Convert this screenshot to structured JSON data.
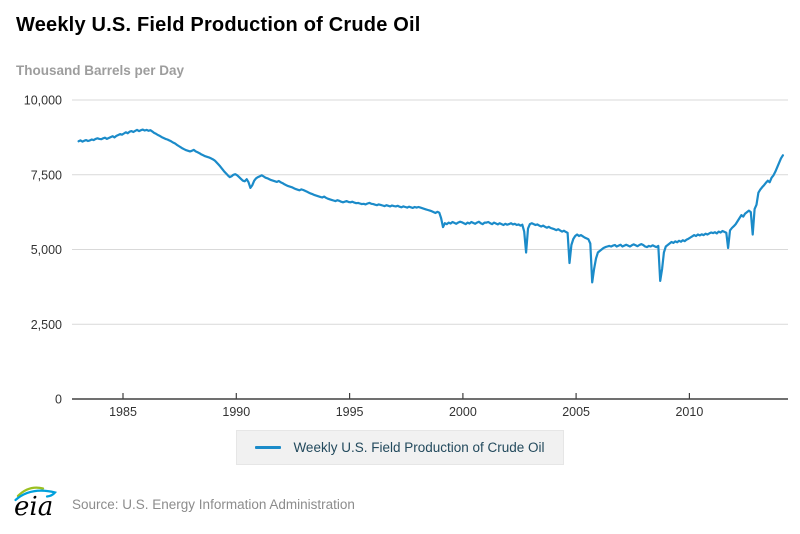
{
  "header": {
    "title": "Weekly U.S. Field Production of Crude Oil",
    "unit_label": "Thousand Barrels per Day"
  },
  "chart_data": {
    "type": "line",
    "title": "Weekly U.S. Field Production of Crude Oil",
    "xlabel": "",
    "ylabel": "Thousand Barrels per Day",
    "xlim": [
      1982.75,
      2014.35
    ],
    "ylim": [
      0,
      10000
    ],
    "grid": "horizontal",
    "x_ticks": [
      {
        "v": 1985,
        "label": "1985"
      },
      {
        "v": 1990,
        "label": "1990"
      },
      {
        "v": 1995,
        "label": "1995"
      },
      {
        "v": 2000,
        "label": "2000"
      },
      {
        "v": 2005,
        "label": "2005"
      },
      {
        "v": 2010,
        "label": "2010"
      }
    ],
    "y_ticks": [
      {
        "v": 10000,
        "label": "10,000"
      },
      {
        "v": 7500,
        "label": "7,500"
      },
      {
        "v": 5000,
        "label": "5,000"
      },
      {
        "v": 2500,
        "label": "2,500"
      },
      {
        "v": 0,
        "label": "0"
      }
    ],
    "legend": {
      "position": "bottom"
    },
    "series": [
      {
        "name": "Weekly U.S. Field Production of Crude Oil",
        "color": "#1b8bc9",
        "unit": "thousand barrels per day",
        "monthly_values_by_year": {
          "1983": [
            8620,
            8650,
            8610,
            8640,
            8660,
            8630,
            8650,
            8680,
            8660,
            8700,
            8720,
            8700
          ],
          "1984": [
            8690,
            8720,
            8740,
            8700,
            8730,
            8760,
            8790,
            8750,
            8800,
            8830,
            8860,
            8840
          ],
          "1985": [
            8880,
            8920,
            8890,
            8940,
            8960,
            8930,
            8970,
            9000,
            8960,
            8990,
            9010,
            8980
          ],
          "1986": [
            9000,
            8970,
            8990,
            8950,
            8900,
            8870,
            8830,
            8800,
            8760,
            8730,
            8700,
            8680
          ],
          "1987": [
            8650,
            8620,
            8580,
            8550,
            8500,
            8460,
            8420,
            8380,
            8350,
            8320,
            8300,
            8280
          ],
          "1988": [
            8300,
            8330,
            8280,
            8250,
            8220,
            8180,
            8150,
            8120,
            8100,
            8080,
            8050,
            8020
          ],
          "1989": [
            7980,
            7920,
            7850,
            7780,
            7700,
            7620,
            7550,
            7480,
            7420,
            7450,
            7500,
            7520
          ],
          "1990": [
            7480,
            7420,
            7360,
            7300,
            7280,
            7350,
            7250,
            7060,
            7150,
            7300,
            7380,
            7420
          ],
          "1991": [
            7450,
            7480,
            7440,
            7400,
            7380,
            7350,
            7320,
            7300,
            7280,
            7260,
            7290,
            7250
          ],
          "1992": [
            7220,
            7180,
            7150,
            7120,
            7100,
            7080,
            7050,
            7020,
            7000,
            6980,
            7010,
            6990
          ],
          "1993": [
            6960,
            6930,
            6900,
            6870,
            6850,
            6820,
            6800,
            6780,
            6760,
            6740,
            6770,
            6730
          ],
          "1994": [
            6700,
            6680,
            6660,
            6640,
            6620,
            6650,
            6630,
            6600,
            6580,
            6600,
            6620,
            6590
          ],
          "1995": [
            6580,
            6600,
            6570,
            6550,
            6560,
            6540,
            6520,
            6530,
            6510,
            6540,
            6560,
            6530
          ],
          "1996": [
            6520,
            6500,
            6480,
            6510,
            6490,
            6470,
            6450,
            6480,
            6460,
            6440,
            6470,
            6450
          ],
          "1997": [
            6440,
            6460,
            6430,
            6410,
            6440,
            6420,
            6400,
            6430,
            6410,
            6390,
            6420,
            6400
          ],
          "1998": [
            6420,
            6400,
            6380,
            6360,
            6340,
            6320,
            6300,
            6280,
            6250,
            6220,
            6260,
            6230
          ],
          "1999": [
            6050,
            5750,
            5880,
            5850,
            5900,
            5870,
            5920,
            5890,
            5860,
            5900,
            5930,
            5910
          ],
          "2000": [
            5880,
            5850,
            5900,
            5870,
            5920,
            5890,
            5860,
            5900,
            5930,
            5880,
            5850,
            5900
          ],
          "2001": [
            5900,
            5920,
            5880,
            5850,
            5900,
            5870,
            5840,
            5880,
            5850,
            5820,
            5860,
            5830
          ],
          "2002": [
            5850,
            5880,
            5840,
            5860,
            5820,
            5840,
            5800,
            5830,
            5600,
            4900,
            5700,
            5850
          ],
          "2003": [
            5880,
            5850,
            5820,
            5840,
            5800,
            5770,
            5800,
            5760,
            5730,
            5760,
            5720,
            5700
          ],
          "2004": [
            5680,
            5650,
            5680,
            5640,
            5600,
            5630,
            5590,
            5560,
            4550,
            5150,
            5350,
            5450
          ],
          "2005": [
            5500,
            5450,
            5480,
            5440,
            5400,
            5370,
            5340,
            5200,
            3900,
            4350,
            4700,
            4900
          ],
          "2006": [
            4950,
            5000,
            5050,
            5080,
            5100,
            5120,
            5100,
            5130,
            5150,
            5100,
            5130,
            5160
          ],
          "2007": [
            5100,
            5130,
            5160,
            5130,
            5100,
            5140,
            5170,
            5140,
            5110,
            5150,
            5180,
            5150
          ],
          "2008": [
            5100,
            5080,
            5120,
            5100,
            5140,
            5110,
            5080,
            5120,
            3950,
            4350,
            4900,
            5100
          ],
          "2009": [
            5150,
            5200,
            5250,
            5220,
            5270,
            5240,
            5290,
            5260,
            5310,
            5280,
            5330,
            5360
          ],
          "2010": [
            5400,
            5440,
            5480,
            5450,
            5500,
            5470,
            5510,
            5480,
            5530,
            5500,
            5540,
            5570
          ],
          "2011": [
            5550,
            5580,
            5540,
            5600,
            5570,
            5620,
            5590,
            5560,
            5050,
            5640,
            5720,
            5780
          ],
          "2012": [
            5850,
            5950,
            6050,
            6150,
            6100,
            6200,
            6250,
            6300,
            6250,
            5500,
            6350,
            6500
          ],
          "2013": [
            6900,
            7000,
            7080,
            7150,
            7230,
            7300,
            7250,
            7400,
            7480,
            7600,
            7750,
            7900
          ],
          "2014": [
            8050,
            8150
          ]
        }
      }
    ]
  },
  "footer": {
    "logo_text": "eia",
    "source": "Source: U.S. Energy Information Administration",
    "logo_green": "#9bc021",
    "logo_blue": "#00a0dc"
  },
  "colors": {
    "line": "#1b8bc9",
    "gridline": "#d9d9d9",
    "axis": "#404040",
    "legend_bg": "#f1f1f1",
    "legend_text": "#234a5d",
    "subtitle_text": "#9d9d9d",
    "source_text": "#8c8c8c"
  }
}
